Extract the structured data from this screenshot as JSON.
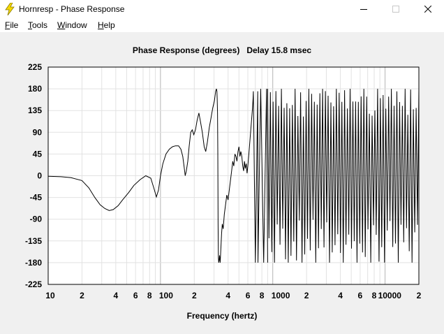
{
  "window": {
    "title": "Hornresp - Phase Response",
    "icon": "lightning-bolt-icon",
    "controls": [
      "minimize-icon",
      "maximize-icon",
      "close-icon"
    ]
  },
  "menu": [
    {
      "label": "File",
      "accel": "F",
      "rest": "ile"
    },
    {
      "label": "Tools",
      "accel": "T",
      "rest": "ools"
    },
    {
      "label": "Window",
      "accel": "W",
      "rest": "indow"
    },
    {
      "label": "Help",
      "accel": "H",
      "rest": "elp"
    }
  ],
  "chart_data": {
    "type": "line",
    "title": "Phase Response (degrees)   Delay 15.8 msec",
    "xlabel": "Frequency (hertz)",
    "ylabel": "",
    "xscale": "log",
    "xlim": [
      10,
      20000
    ],
    "ylim": [
      -225,
      225
    ],
    "yticks": [
      225,
      180,
      135,
      90,
      45,
      0,
      -45,
      -90,
      -135,
      -180,
      -225
    ],
    "xtick_labels": [
      {
        "value": 10,
        "label": "10"
      },
      {
        "value": 20,
        "label": "2"
      },
      {
        "value": 40,
        "label": "4"
      },
      {
        "value": 60,
        "label": "6"
      },
      {
        "value": 80,
        "label": "8"
      },
      {
        "value": 100,
        "label": "100"
      },
      {
        "value": 200,
        "label": "2"
      },
      {
        "value": 400,
        "label": "4"
      },
      {
        "value": 600,
        "label": "6"
      },
      {
        "value": 800,
        "label": "8"
      },
      {
        "value": 1000,
        "label": "1000"
      },
      {
        "value": 2000,
        "label": "2"
      },
      {
        "value": 4000,
        "label": "4"
      },
      {
        "value": 6000,
        "label": "6"
      },
      {
        "value": 8000,
        "label": "8"
      },
      {
        "value": 10000,
        "label": "10000"
      },
      {
        "value": 20000,
        "label": "2"
      }
    ],
    "grid": true,
    "series": [
      {
        "color": "#000000",
        "x": [
          10,
          13,
          16,
          20,
          23,
          26,
          29,
          32,
          35,
          38,
          42,
          46,
          52,
          58,
          66,
          74,
          82,
          88,
          92,
          96,
          100,
          105,
          112,
          120,
          128,
          136,
          145,
          152,
          158,
          162,
          166,
          170,
          175,
          180,
          186,
          192,
          198,
          205,
          212,
          220,
          228,
          236,
          245,
          253,
          262,
          272,
          282,
          292,
          302,
          310,
          315,
          318,
          320,
          322,
          324,
          326,
          328,
          330,
          333,
          336,
          340,
          345,
          350,
          355,
          362,
          370,
          380,
          390,
          400,
          410,
          420,
          430,
          440,
          450,
          460,
          470,
          480,
          490,
          500,
          510,
          520,
          530,
          540,
          550,
          560,
          570,
          580,
          590,
          600,
          610,
          620,
          630,
          640,
          650,
          660,
          668,
          672,
          700,
          735,
          738,
          780,
          830,
          880,
          900
        ],
        "y": [
          -1,
          -2,
          -4,
          -10,
          -25,
          -45,
          -60,
          -68,
          -72,
          -70,
          -62,
          -50,
          -35,
          -20,
          -8,
          0,
          -5,
          -28,
          -44,
          -30,
          0,
          25,
          45,
          55,
          60,
          62,
          62,
          55,
          40,
          20,
          0,
          10,
          30,
          60,
          90,
          95,
          85,
          95,
          115,
          130,
          110,
          90,
          60,
          50,
          70,
          100,
          120,
          140,
          155,
          175,
          180,
          175,
          160,
          130,
          50,
          -100,
          -170,
          -180,
          -175,
          -165,
          -180,
          -150,
          -120,
          -100,
          -110,
          -80,
          -60,
          -40,
          -50,
          -30,
          -10,
          10,
          30,
          20,
          45,
          40,
          30,
          50,
          60,
          40,
          50,
          40,
          20,
          10,
          30,
          15,
          25,
          5,
          20,
          40,
          60,
          80,
          100,
          120,
          140,
          160,
          175,
          -180,
          175,
          -180,
          180,
          -180,
          180,
          -180
        ]
      }
    ],
    "dense_oscillation_region": {
      "x_from": 900,
      "x_to": 20000,
      "y_range": [
        -180,
        180
      ],
      "description_type": "wrapped phase"
    }
  }
}
